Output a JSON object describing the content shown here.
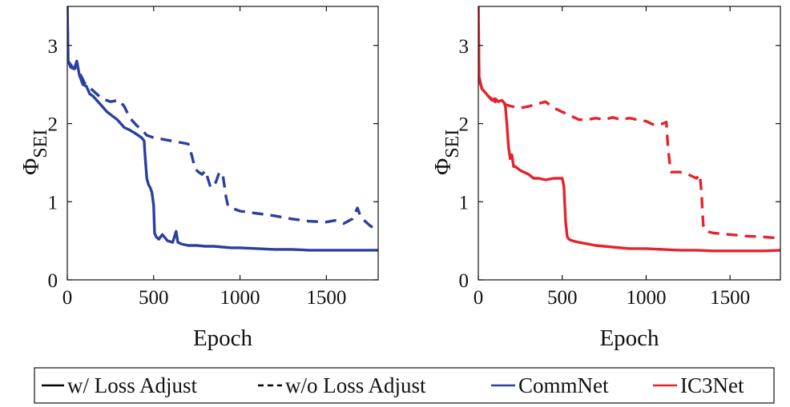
{
  "chart_data": [
    {
      "type": "line",
      "xlabel": "Epoch",
      "ylabel_main": "Φ",
      "ylabel_sub": "SEI",
      "xlim": [
        0,
        1800
      ],
      "ylim": [
        0,
        3.5
      ],
      "xticks": [
        0,
        500,
        1000,
        1500
      ],
      "yticks": [
        0,
        1,
        2,
        3
      ],
      "grid": false,
      "series": [
        {
          "name": "CommNet w/ Loss Adjust",
          "model": "CommNet",
          "style": "solid",
          "color": "#2b3f9e",
          "x": [
            0,
            5,
            20,
            40,
            55,
            70,
            90,
            110,
            130,
            150,
            170,
            190,
            210,
            230,
            260,
            290,
            310,
            330,
            360,
            390,
            410,
            430,
            445,
            450,
            460,
            470,
            480,
            490,
            500,
            505,
            515,
            530,
            550,
            580,
            610,
            630,
            640,
            660,
            700,
            750,
            800,
            850,
            900,
            950,
            1000,
            1100,
            1200,
            1300,
            1400,
            1500,
            1600,
            1700,
            1800
          ],
          "y": [
            3.5,
            2.8,
            2.72,
            2.7,
            2.8,
            2.62,
            2.5,
            2.48,
            2.38,
            2.35,
            2.3,
            2.25,
            2.2,
            2.15,
            2.1,
            2.05,
            2.0,
            1.95,
            1.92,
            1.88,
            1.85,
            1.82,
            1.78,
            1.6,
            1.3,
            1.22,
            1.18,
            1.12,
            0.95,
            0.6,
            0.55,
            0.52,
            0.58,
            0.5,
            0.48,
            0.62,
            0.48,
            0.46,
            0.44,
            0.44,
            0.43,
            0.43,
            0.42,
            0.41,
            0.41,
            0.4,
            0.39,
            0.39,
            0.38,
            0.38,
            0.38,
            0.38,
            0.38
          ]
        },
        {
          "name": "CommNet w/o Loss Adjust",
          "model": "CommNet",
          "style": "dashed",
          "color": "#2b3f9e",
          "x": [
            0,
            5,
            30,
            60,
            100,
            150,
            200,
            250,
            300,
            330,
            360,
            400,
            440,
            460,
            500,
            550,
            600,
            650,
            700,
            720,
            740,
            760,
            780,
            800,
            830,
            860,
            880,
            900,
            920,
            930,
            950,
            1000,
            1100,
            1200,
            1300,
            1400,
            1500,
            1550,
            1600,
            1650,
            1680,
            1700,
            1750,
            1800
          ],
          "y": [
            3.5,
            2.8,
            2.72,
            2.7,
            2.52,
            2.42,
            2.32,
            2.28,
            2.3,
            2.22,
            2.08,
            1.98,
            1.9,
            1.85,
            1.82,
            1.8,
            1.78,
            1.76,
            1.74,
            1.6,
            1.42,
            1.38,
            1.35,
            1.4,
            1.18,
            1.25,
            1.38,
            1.35,
            1.05,
            0.95,
            0.92,
            0.88,
            0.85,
            0.82,
            0.78,
            0.75,
            0.74,
            0.76,
            0.72,
            0.78,
            0.92,
            0.8,
            0.7,
            0.62
          ]
        }
      ]
    },
    {
      "type": "line",
      "xlabel": "Epoch",
      "ylabel_main": "Φ",
      "ylabel_sub": "SEI",
      "xlim": [
        0,
        1800
      ],
      "ylim": [
        0,
        3.5
      ],
      "xticks": [
        0,
        500,
        1000,
        1500
      ],
      "yticks": [
        0,
        1,
        2,
        3
      ],
      "grid": false,
      "series": [
        {
          "name": "IC3Net w/ Loss Adjust",
          "model": "IC3Net",
          "style": "solid",
          "color": "#e8222a",
          "x": [
            0,
            5,
            20,
            40,
            60,
            80,
            100,
            120,
            140,
            160,
            170,
            180,
            190,
            200,
            210,
            220,
            250,
            300,
            330,
            360,
            400,
            450,
            500,
            510,
            520,
            530,
            540,
            560,
            600,
            650,
            700,
            750,
            800,
            900,
            1000,
            1100,
            1200,
            1300,
            1400,
            1500,
            1600,
            1700,
            1800
          ],
          "y": [
            3.5,
            2.6,
            2.45,
            2.4,
            2.35,
            2.3,
            2.32,
            2.28,
            2.3,
            2.25,
            2.0,
            1.7,
            1.55,
            1.6,
            1.45,
            1.45,
            1.4,
            1.35,
            1.3,
            1.3,
            1.28,
            1.3,
            1.3,
            1.2,
            0.75,
            0.55,
            0.52,
            0.5,
            0.48,
            0.46,
            0.44,
            0.43,
            0.42,
            0.4,
            0.4,
            0.39,
            0.38,
            0.38,
            0.37,
            0.37,
            0.37,
            0.37,
            0.38
          ]
        },
        {
          "name": "IC3Net w/o Loss Adjust",
          "model": "IC3Net",
          "style": "dashed",
          "color": "#e8222a",
          "x": [
            0,
            5,
            30,
            60,
            100,
            150,
            200,
            250,
            300,
            350,
            400,
            450,
            500,
            550,
            600,
            650,
            700,
            750,
            800,
            850,
            900,
            950,
            1000,
            1050,
            1100,
            1120,
            1130,
            1140,
            1150,
            1200,
            1250,
            1300,
            1320,
            1330,
            1340,
            1360,
            1400,
            1500,
            1600,
            1700,
            1750,
            1800
          ],
          "y": [
            3.5,
            2.55,
            2.4,
            2.35,
            2.28,
            2.25,
            2.22,
            2.2,
            2.22,
            2.25,
            2.28,
            2.2,
            2.15,
            2.1,
            2.05,
            2.05,
            2.07,
            2.05,
            2.08,
            2.05,
            2.07,
            2.05,
            2.03,
            1.98,
            2.0,
            2.02,
            1.7,
            1.5,
            1.38,
            1.38,
            1.35,
            1.3,
            1.35,
            1.1,
            0.7,
            0.62,
            0.6,
            0.58,
            0.56,
            0.55,
            0.54,
            0.54
          ]
        }
      ]
    }
  ],
  "legend": {
    "items": [
      {
        "label": "w/ Loss Adjust",
        "line": "solid",
        "color": "#000000"
      },
      {
        "label": "w/o Loss Adjust",
        "line": "dashed",
        "color": "#000000"
      },
      {
        "label": "CommNet",
        "line": "solid",
        "color": "#2b3f9e"
      },
      {
        "label": "IC3Net",
        "line": "solid",
        "color": "#e8222a"
      }
    ]
  }
}
